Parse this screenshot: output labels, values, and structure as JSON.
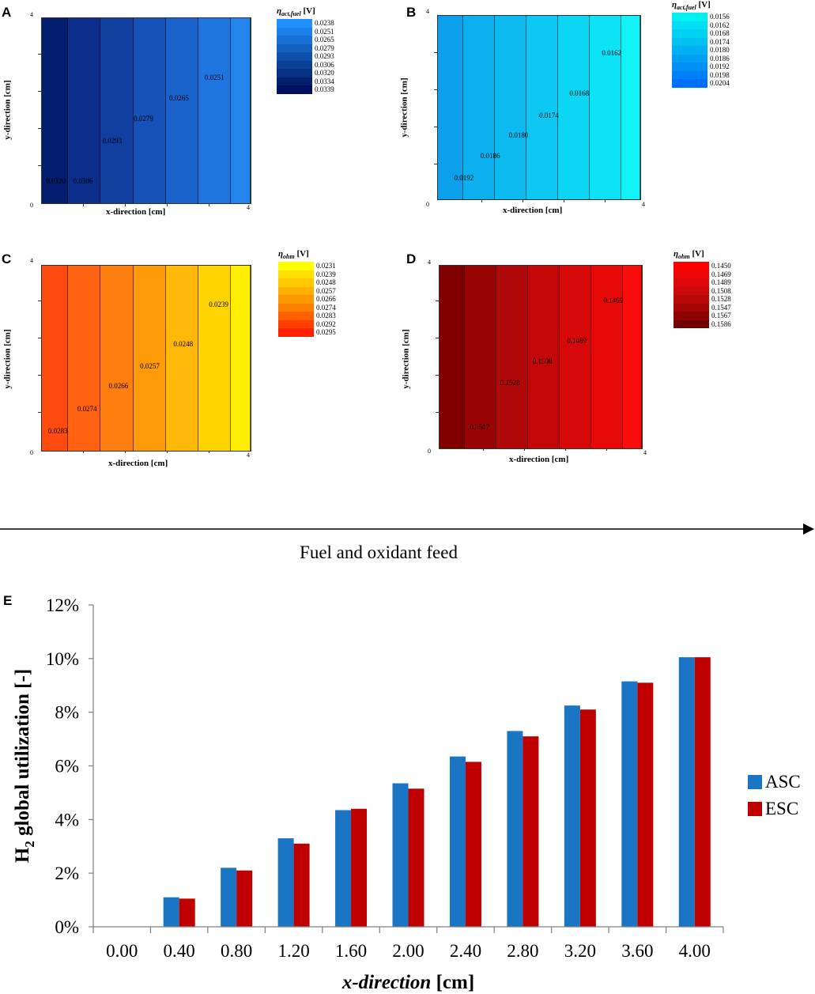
{
  "panels": [
    {
      "letter": "A",
      "legend": {
        "symbol": "η",
        "sub": "act,fuel",
        "unit": "[V]",
        "values": [
          "0.0238",
          "0.0251",
          "0.0265",
          "0.0279",
          "0.0293",
          "0.0306",
          "0.0320",
          "0.0334",
          "0.0339"
        ],
        "colors": [
          "#1e90ff",
          "#1a80ea",
          "#1670d5",
          "#1260c0",
          "#0e50ab",
          "#0a4096",
          "#063081",
          "#03206c",
          "#001060"
        ]
      },
      "bands": [
        "#041d6e",
        "#0b2f8a",
        "#103f9f",
        "#1551b6",
        "#1a63cc",
        "#1f75e0",
        "#2384ee"
      ],
      "contour_labels": [
        "0.0320",
        "0.0306",
        "0.0293",
        "0.0279",
        "0.0265",
        "0.0251"
      ],
      "xlabel": "x-direction [cm]",
      "ylabel": "y-direction [cm]",
      "tick_min": "0",
      "tick_max": "4"
    },
    {
      "letter": "B",
      "legend": {
        "symbol": "η",
        "sub": "act,fuel",
        "unit": "[V]",
        "values": [
          "0.0156",
          "0.0162",
          "0.0168",
          "0.0174",
          "0.0180",
          "0.0186",
          "0.0192",
          "0.0198",
          "0.0204"
        ],
        "colors": [
          "#00f0f0",
          "#00e0f2",
          "#00d0f2",
          "#00c0f2",
          "#00b0f4",
          "#00a0f4",
          "#0090f6",
          "#0080f8",
          "#0070fa"
        ]
      },
      "bands": [
        "#0ca0ec",
        "#0cb0ee",
        "#0cbaf0",
        "#0cc8f2",
        "#0cd6f4",
        "#0ce4f6",
        "#10f2f6"
      ],
      "contour_labels": [
        "0.0192",
        "0.0186",
        "0.0180",
        "0.0174",
        "0.0168",
        "0.0162"
      ],
      "xlabel": "x-direction [cm]",
      "ylabel": "y-direction [cm]",
      "tick_min": "0",
      "tick_max": "4"
    },
    {
      "letter": "C",
      "legend": {
        "symbol": "η",
        "sub": "ohm",
        "unit": "[V]",
        "values": [
          "0.0231",
          "0.0239",
          "0.0248",
          "0.0257",
          "0.0266",
          "0.0274",
          "0.0283",
          "0.0292",
          "0.0295"
        ],
        "colors": [
          "#ffff00",
          "#ffe000",
          "#ffc800",
          "#ffb000",
          "#ff9800",
          "#ff8000",
          "#ff6000",
          "#ff4000",
          "#ff2000"
        ]
      },
      "bands": [
        "#ff4a10",
        "#ff6210",
        "#ff7e10",
        "#ff9a08",
        "#ffb808",
        "#ffd400",
        "#ffee00"
      ],
      "contour_labels": [
        "0.0283",
        "0.0274",
        "0.0266",
        "0.0257",
        "0.0248",
        "0.0239"
      ],
      "xlabel": "x-direction [cm]",
      "ylabel": "y-direction [cm]",
      "tick_min": "0",
      "tick_max": "4"
    },
    {
      "letter": "D",
      "legend": {
        "symbol": "η",
        "sub": "ohm",
        "unit": "[V]",
        "values": [
          "0.1450",
          "0.1469",
          "0.1489",
          "0.1508",
          "0.1528",
          "0.1547",
          "0.1567",
          "0.1586"
        ],
        "colors": [
          "#ff0000",
          "#ee0606",
          "#dd0808",
          "#cc0808",
          "#b80808",
          "#a40606",
          "#8c0404",
          "#700000"
        ]
      },
      "bands": [
        "#800000",
        "#990404",
        "#b00808",
        "#c40808",
        "#d60808",
        "#e80808",
        "#fa0c0c"
      ],
      "contour_labels": [
        "0.1547",
        "0.1528",
        "0.1508",
        "0.1489",
        "0.1469"
      ],
      "xlabel": "x-direction [cm]",
      "ylabel": "y-direction [cm]",
      "tick_min": "0",
      "tick_max": "4"
    }
  ],
  "feed_label": "Fuel and oxidant feed",
  "chart_data": {
    "type": "bar",
    "panel_letter": "E",
    "title": "",
    "xlabel": "x-direction [cm]",
    "ylabel": "H2 global utilization [-]",
    "categories": [
      "0.00",
      "0.40",
      "0.80",
      "1.20",
      "1.60",
      "2.00",
      "2.40",
      "2.80",
      "3.20",
      "3.60",
      "4.00"
    ],
    "series": [
      {
        "name": "ASC",
        "color": "#1a76c4",
        "values": [
          0,
          1.1,
          2.2,
          3.3,
          4.35,
          5.35,
          6.35,
          7.3,
          8.25,
          9.15,
          10.05
        ]
      },
      {
        "name": "ESC",
        "color": "#c00000",
        "values": [
          0,
          1.05,
          2.1,
          3.1,
          4.4,
          5.15,
          6.15,
          7.1,
          8.1,
          9.1,
          10.05
        ]
      }
    ],
    "ylim": [
      0,
      12
    ],
    "yticks": [
      "0%",
      "2%",
      "4%",
      "6%",
      "8%",
      "10%",
      "12%"
    ],
    "legend_position": "right"
  }
}
